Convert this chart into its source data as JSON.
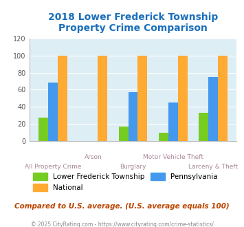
{
  "title": "2018 Lower Frederick Township\nProperty Crime Comparison",
  "title_color": "#1a6fbb",
  "categories": [
    "All Property Crime",
    "Arson",
    "Burglary",
    "Motor Vehicle Theft",
    "Larceny & Theft"
  ],
  "local_values": [
    27,
    0,
    17,
    9,
    33
  ],
  "pennsylvania_values": [
    68,
    0,
    57,
    45,
    75
  ],
  "national_values": [
    100,
    100,
    100,
    100,
    100
  ],
  "local_color": "#77cc22",
  "pennsylvania_color": "#4499ee",
  "national_color": "#ffaa33",
  "plot_bg": "#ddeef4",
  "ylim": [
    0,
    120
  ],
  "yticks": [
    0,
    20,
    40,
    60,
    80,
    100,
    120
  ],
  "footer_text": "Compared to U.S. average. (U.S. average equals 100)",
  "footer_color": "#bb4400",
  "copyright_text": "© 2025 CityRating.com - https://www.cityrating.com/crime-statistics/",
  "copyright_color": "#888888",
  "legend_local": "Lower Frederick Township",
  "legend_penn": "Pennsylvania",
  "legend_national": "National",
  "bar_width": 0.24,
  "top_labels": [
    "",
    "Arson",
    "",
    "Motor Vehicle Theft",
    ""
  ],
  "bottom_labels": [
    "All Property Crime",
    "",
    "Burglary",
    "",
    "Larceny & Theft"
  ],
  "label_color": "#aa8899"
}
